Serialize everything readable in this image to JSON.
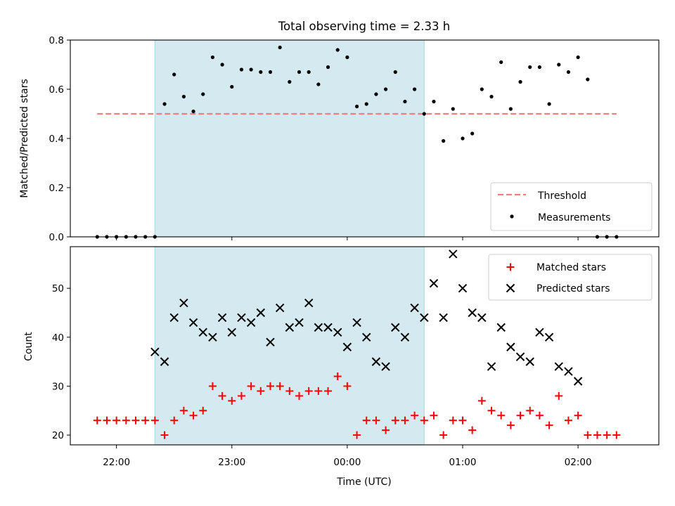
{
  "chart_data": [
    {
      "type": "scatter",
      "title": "Total observing time = 2.33 h",
      "xlabel": "",
      "ylabel": "Matched/Predicted stars",
      "xlim": [
        "21:36",
        "02:42"
      ],
      "ylim": [
        0,
        0.8
      ],
      "yticks": [
        "0.0",
        "0.2",
        "0.4",
        "0.6",
        "0.8"
      ],
      "shaded_span": [
        "22:20",
        "00:40"
      ],
      "shade_color": "#d4eaf0",
      "legend_position": "lower-right",
      "threshold": {
        "name": "Threshold",
        "value": 0.5,
        "x_range": [
          "21:50",
          "02:20"
        ],
        "color": "#f08080"
      },
      "series": [
        {
          "name": "Measurements",
          "color": "#000000",
          "x": [
            "21:50",
            "21:55",
            "22:00",
            "22:05",
            "22:10",
            "22:15",
            "22:20",
            "22:25",
            "22:30",
            "22:35",
            "22:40",
            "22:45",
            "22:50",
            "22:55",
            "23:00",
            "23:05",
            "23:10",
            "23:15",
            "23:20",
            "23:25",
            "23:30",
            "23:35",
            "23:40",
            "23:45",
            "23:50",
            "23:55",
            "00:00",
            "00:05",
            "00:10",
            "00:15",
            "00:20",
            "00:25",
            "00:30",
            "00:35",
            "00:40",
            "00:45",
            "00:50",
            "00:55",
            "01:00",
            "01:05",
            "01:10",
            "01:15",
            "01:20",
            "01:25",
            "01:30",
            "01:35",
            "01:40",
            "01:45",
            "01:50",
            "01:55",
            "02:00",
            "02:05",
            "02:10",
            "02:15",
            "02:20"
          ],
          "y": [
            0,
            0,
            0,
            0,
            0,
            0,
            0,
            0.54,
            0.66,
            0.57,
            0.51,
            0.58,
            0.73,
            0.7,
            0.61,
            0.68,
            0.68,
            0.67,
            0.67,
            0.77,
            0.63,
            0.67,
            0.67,
            0.62,
            0.69,
            0.76,
            0.73,
            0.53,
            0.54,
            0.58,
            0.6,
            0.67,
            0.55,
            0.6,
            0.5,
            0.55,
            0.39,
            0.52,
            0.4,
            0.42,
            0.6,
            0.57,
            0.71,
            0.52,
            0.63,
            0.69,
            0.69,
            0.54,
            0.7,
            0.67,
            0.73,
            0.64,
            0,
            0,
            0
          ]
        }
      ]
    },
    {
      "type": "scatter",
      "title": "",
      "xlabel": "Time (UTC)",
      "ylabel": "Count",
      "xlim": [
        "21:36",
        "02:42"
      ],
      "ylim": [
        18,
        58.5
      ],
      "yticks": [
        "20",
        "30",
        "40",
        "50"
      ],
      "xticks": [
        "22:00",
        "23:00",
        "00:00",
        "01:00",
        "02:00"
      ],
      "shaded_span": [
        "22:20",
        "00:40"
      ],
      "shade_color": "#d4eaf0",
      "legend_position": "upper-right",
      "series": [
        {
          "name": "Matched stars",
          "color": "#ff0000",
          "marker": "plus",
          "x": [
            "21:50",
            "21:55",
            "22:00",
            "22:05",
            "22:10",
            "22:15",
            "22:20",
            "22:25",
            "22:30",
            "22:35",
            "22:40",
            "22:45",
            "22:50",
            "22:55",
            "23:00",
            "23:05",
            "23:10",
            "23:15",
            "23:20",
            "23:25",
            "23:30",
            "23:35",
            "23:40",
            "23:45",
            "23:50",
            "23:55",
            "00:00",
            "00:05",
            "00:10",
            "00:15",
            "00:20",
            "00:25",
            "00:30",
            "00:35",
            "00:40",
            "00:45",
            "00:50",
            "00:55",
            "01:00",
            "01:05",
            "01:10",
            "01:15",
            "01:20",
            "01:25",
            "01:30",
            "01:35",
            "01:40",
            "01:45",
            "01:50",
            "01:55",
            "02:00",
            "02:05",
            "02:10",
            "02:15",
            "02:20"
          ],
          "y": [
            23,
            23,
            23,
            23,
            23,
            23,
            23,
            20,
            23,
            25,
            24,
            25,
            30,
            28,
            27,
            28,
            30,
            29,
            30,
            30,
            29,
            28,
            29,
            29,
            29,
            32,
            30,
            20,
            23,
            23,
            21,
            23,
            23,
            24,
            23,
            24,
            20,
            23,
            23,
            21,
            27,
            25,
            24,
            22,
            24,
            25,
            24,
            22,
            28,
            23,
            24,
            20,
            20,
            20,
            20
          ]
        },
        {
          "name": "Predicted stars",
          "color": "#000000",
          "marker": "x",
          "x": [
            "22:20",
            "22:25",
            "22:30",
            "22:35",
            "22:40",
            "22:45",
            "22:50",
            "22:55",
            "23:00",
            "23:05",
            "23:10",
            "23:15",
            "23:20",
            "23:25",
            "23:30",
            "23:35",
            "23:40",
            "23:45",
            "23:50",
            "23:55",
            "00:00",
            "00:05",
            "00:10",
            "00:15",
            "00:20",
            "00:25",
            "00:30",
            "00:35",
            "00:40",
            "00:45",
            "00:50",
            "00:55",
            "01:00",
            "01:05",
            "01:10",
            "01:15",
            "01:20",
            "01:25",
            "01:30",
            "01:35",
            "01:40",
            "01:45",
            "01:50",
            "01:55",
            "02:00"
          ],
          "y": [
            37,
            35,
            44,
            47,
            43,
            41,
            40,
            44,
            41,
            44,
            43,
            45,
            39,
            46,
            42,
            43,
            47,
            42,
            42,
            41,
            38,
            43,
            40,
            35,
            34,
            42,
            40,
            46,
            44,
            51,
            44,
            57,
            50,
            45,
            44,
            34,
            42,
            38,
            36,
            35,
            41,
            40,
            34,
            33,
            31
          ]
        }
      ]
    }
  ]
}
